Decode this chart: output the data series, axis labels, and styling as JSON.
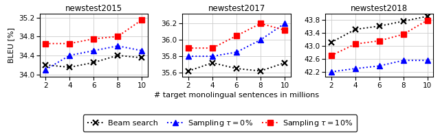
{
  "x": [
    2,
    4,
    6,
    8,
    10
  ],
  "panels": [
    {
      "title": "newstest2015",
      "ylim": [
        33.95,
        35.28
      ],
      "yticks": [
        34.0,
        34.4,
        34.8,
        35.2
      ],
      "beam": [
        34.2,
        34.15,
        34.25,
        34.4,
        34.35
      ],
      "samp0": [
        34.1,
        34.4,
        34.5,
        34.6,
        34.5
      ],
      "samp10": [
        34.65,
        34.65,
        34.75,
        34.8,
        35.15
      ]
    },
    {
      "title": "newstest2017",
      "ylim": [
        35.55,
        36.32
      ],
      "yticks": [
        35.6,
        35.8,
        36.0,
        36.2
      ],
      "beam": [
        35.62,
        35.72,
        35.65,
        35.62,
        35.72
      ],
      "samp0": [
        35.8,
        35.8,
        35.85,
        36.0,
        36.2
      ],
      "samp10": [
        35.9,
        35.9,
        36.05,
        36.2,
        36.12
      ]
    },
    {
      "title": "newstest2018",
      "ylim": [
        42.05,
        43.98
      ],
      "yticks": [
        42.2,
        42.6,
        43.0,
        43.4,
        43.8
      ],
      "beam": [
        43.1,
        43.5,
        43.6,
        43.75,
        43.9
      ],
      "samp0": [
        42.2,
        42.3,
        42.38,
        42.55,
        42.55
      ],
      "samp10": [
        42.7,
        43.05,
        43.15,
        43.35,
        43.78
      ]
    }
  ],
  "xlabel": "# target monolingual sentences in millions",
  "ylabel": "BLEU [%]",
  "legend": [
    {
      "label": "Beam search",
      "color": "black",
      "marker": "x"
    },
    {
      "label": "Sampling $\\tau = 0\\%$",
      "color": "blue",
      "marker": "^"
    },
    {
      "label": "Sampling $\\tau = 10\\%$",
      "color": "red",
      "marker": "s"
    }
  ],
  "beam_color": "black",
  "samp0_color": "blue",
  "samp10_color": "red",
  "figsize": [
    6.4,
    2.0
  ],
  "dpi": 100
}
